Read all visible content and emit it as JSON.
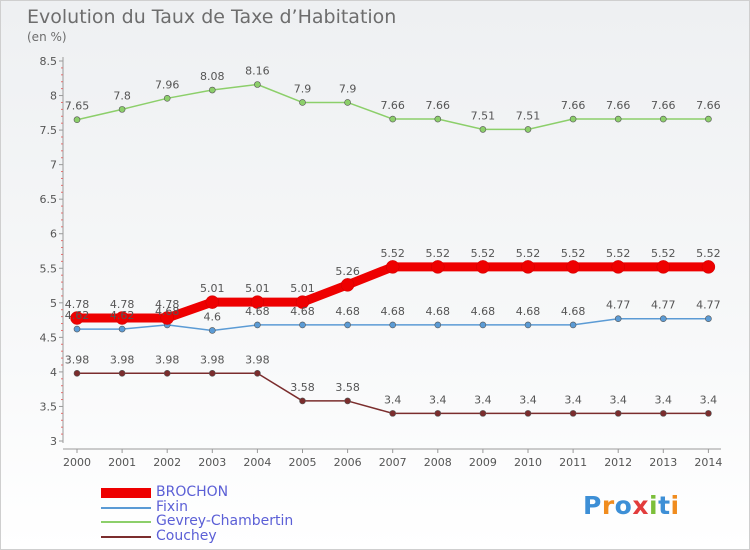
{
  "header": {
    "title": "Evolution du Taux de Taxe d’Habitation",
    "subtitle": "(en %)"
  },
  "logo": {
    "text": "Proxiti",
    "letters": [
      "P",
      "r",
      "o",
      "x",
      "i",
      "t",
      "i"
    ],
    "colors": [
      "#3d8fd6",
      "#f08c1e",
      "#3d8fd6",
      "#e23c3c",
      "#7cbf3a",
      "#3d8fd6",
      "#f08c1e"
    ]
  },
  "chart_data": {
    "type": "line",
    "title": "Evolution du Taux de Taxe d’Habitation",
    "subtitle": "(en %)",
    "xlabel": "",
    "ylabel": "",
    "categories": [
      "2000",
      "2001",
      "2002",
      "2003",
      "2004",
      "2005",
      "2006",
      "2007",
      "2008",
      "2009",
      "2010",
      "2011",
      "2012",
      "2013",
      "2014"
    ],
    "ylim": [
      3,
      8.5
    ],
    "yticks": [
      3,
      3.5,
      4,
      4.5,
      5,
      5.5,
      6,
      6.5,
      7,
      7.5,
      8,
      8.5
    ],
    "grid": false,
    "legend_position": "bottom-left",
    "series": [
      {
        "name": "BROCHON",
        "color": "#ee0000",
        "emphasis": true,
        "values": [
          4.78,
          4.78,
          4.78,
          5.01,
          5.01,
          5.01,
          5.26,
          5.52,
          5.52,
          5.52,
          5.52,
          5.52,
          5.52,
          5.52,
          5.52
        ],
        "labels": [
          "4.78",
          "4.78",
          "4.78",
          "5.01",
          "5.01",
          "5.01",
          "5.26",
          "5.52",
          "5.52",
          "5.52",
          "5.52",
          "5.52",
          "5.52",
          "5.52",
          "5.52"
        ]
      },
      {
        "name": "Fixin",
        "color": "#5b9bd5",
        "emphasis": false,
        "values": [
          4.62,
          4.62,
          4.68,
          4.6,
          4.68,
          4.68,
          4.68,
          4.68,
          4.68,
          4.68,
          4.68,
          4.68,
          4.77,
          4.77,
          4.77
        ],
        "labels": [
          "4.62",
          "4.62",
          "4.68",
          "4.6",
          "4.68",
          "4.68",
          "4.68",
          "4.68",
          "4.68",
          "4.68",
          "4.68",
          "4.68",
          "4.77",
          "4.77",
          "4.77"
        ]
      },
      {
        "name": "Gevrey-Chambertin",
        "color": "#8ccf6a",
        "emphasis": false,
        "values": [
          7.65,
          7.8,
          7.96,
          8.08,
          8.16,
          7.9,
          7.9,
          7.66,
          7.66,
          7.51,
          7.51,
          7.66,
          7.66,
          7.66,
          7.66
        ],
        "labels": [
          "7.65",
          "7.8",
          "7.96",
          "8.08",
          "8.16",
          "7.9",
          "7.9",
          "7.66",
          "7.66",
          "7.51",
          "7.51",
          "7.66",
          "7.66",
          "7.66",
          "7.66"
        ]
      },
      {
        "name": "Couchey",
        "color": "#7b2d2d",
        "emphasis": false,
        "values": [
          3.98,
          3.98,
          3.98,
          3.98,
          3.98,
          3.58,
          3.58,
          3.4,
          3.4,
          3.4,
          3.4,
          3.4,
          3.4,
          3.4,
          3.4
        ],
        "labels": [
          "3.98",
          "3.98",
          "3.98",
          "3.98",
          "3.98",
          "3.58",
          "3.58",
          "3.4",
          "3.4",
          "3.4",
          "3.4",
          "3.4",
          "3.4",
          "3.4",
          "3.4"
        ]
      }
    ]
  }
}
